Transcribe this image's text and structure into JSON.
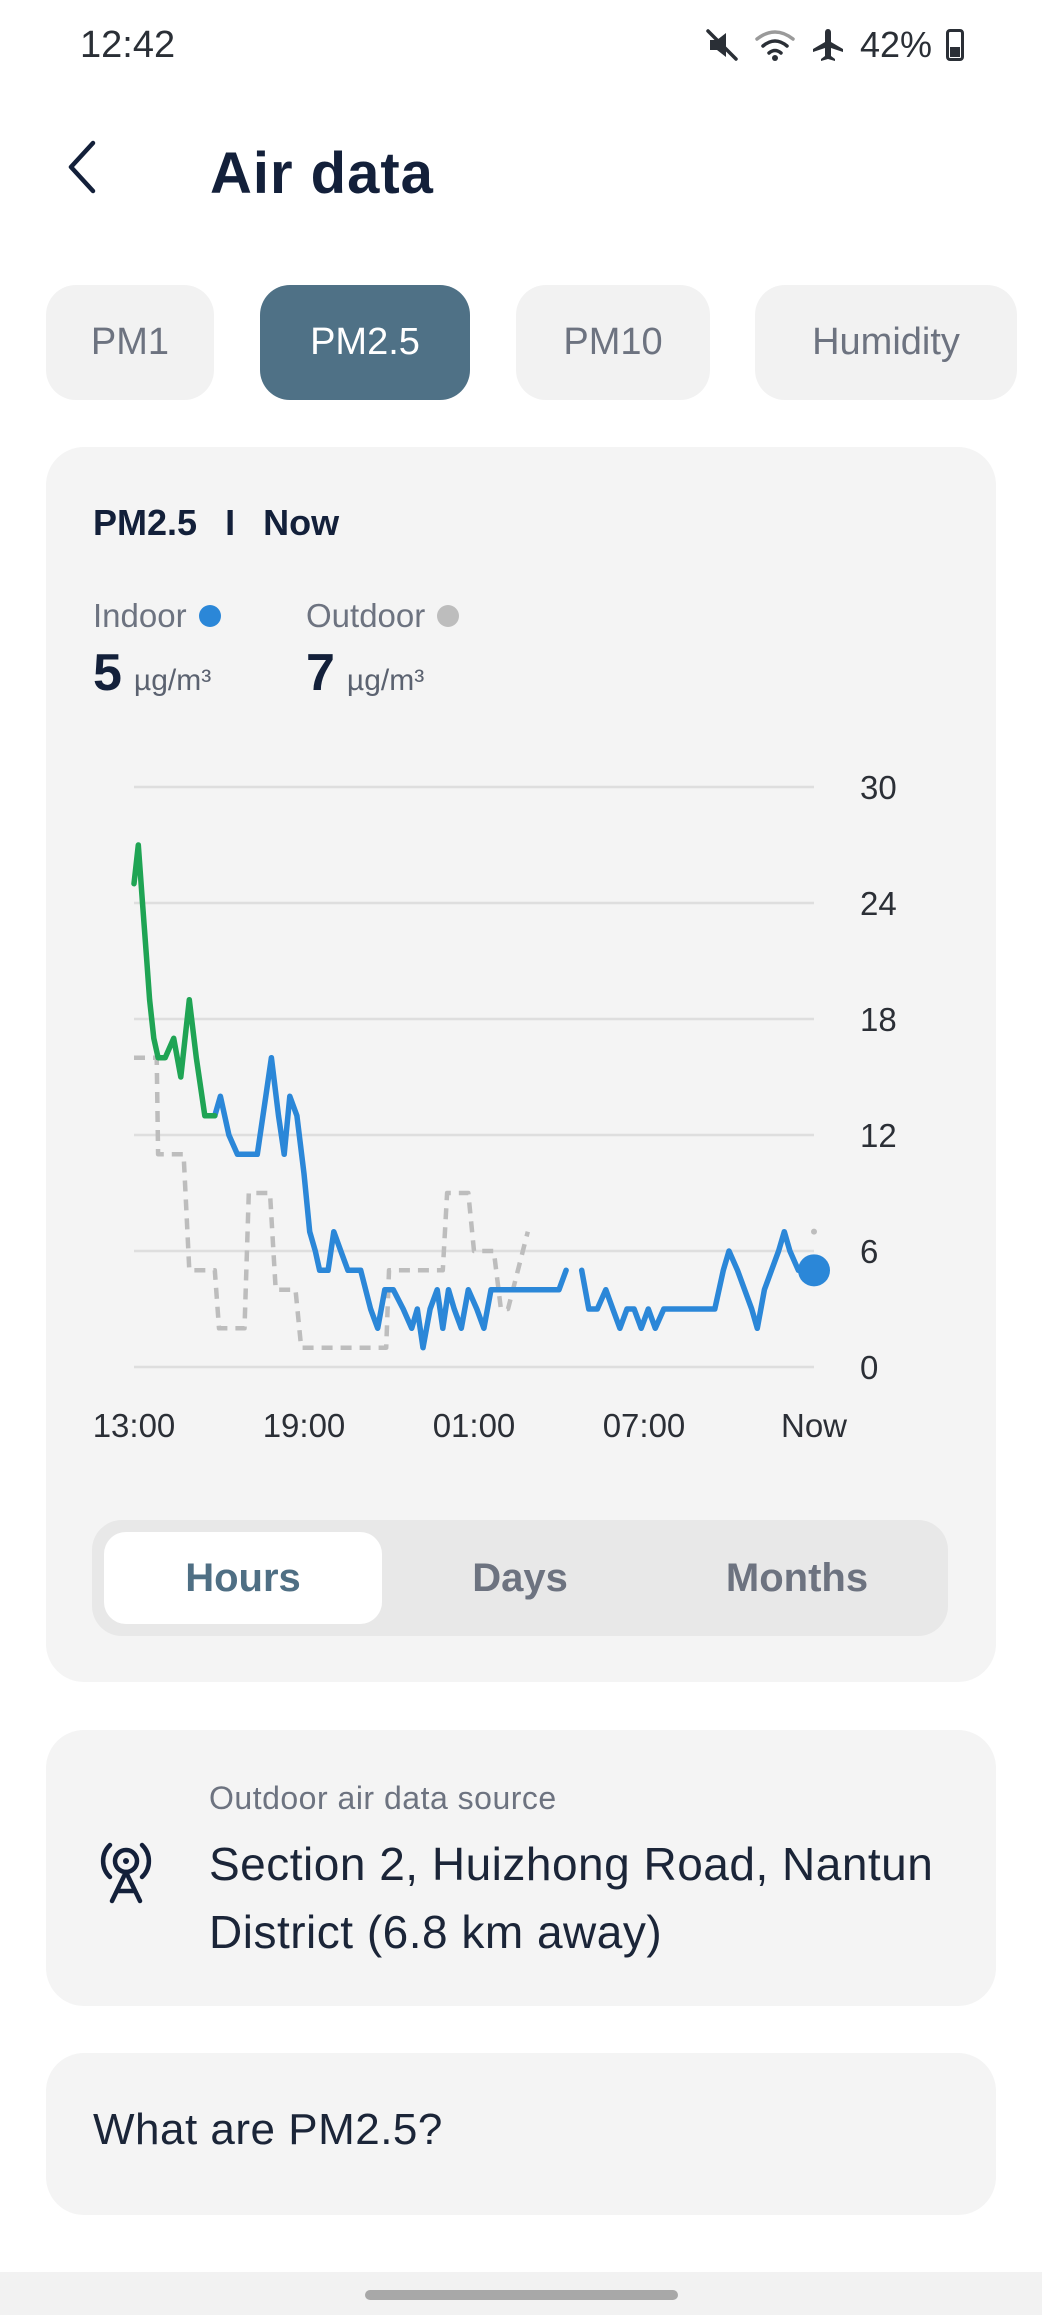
{
  "status_bar": {
    "time": "12:42",
    "battery": "42%",
    "icons": [
      "mute-icon",
      "wifi-icon",
      "airplane-icon",
      "battery-icon"
    ]
  },
  "header": {
    "title": "Air data",
    "back_icon": "chevron-left-icon"
  },
  "tabs": [
    {
      "label": "PM1",
      "active": false
    },
    {
      "label": "PM2.5",
      "active": true
    },
    {
      "label": "PM10",
      "active": false
    },
    {
      "label": "Humidity",
      "active": false
    }
  ],
  "chart_card": {
    "heading_metric": "PM2.5",
    "heading_separator": "I",
    "heading_period": "Now",
    "indoor": {
      "label": "Indoor",
      "value": "5",
      "unit": "µg/m³",
      "color": "#2b87d8"
    },
    "outdoor": {
      "label": "Outdoor",
      "value": "7",
      "unit": "µg/m³",
      "color": "#bdbdbd"
    }
  },
  "chart_data": {
    "type": "line",
    "title": "",
    "xlabel": "",
    "ylabel": "",
    "x_tick_labels": [
      "13:00",
      "19:00",
      "01:00",
      "07:00",
      "Now"
    ],
    "x_ticks": [
      0,
      6,
      12,
      18,
      24
    ],
    "ylim": [
      0,
      30
    ],
    "y_ticks": [
      0,
      6,
      12,
      18,
      24,
      30
    ],
    "y_axis_position": "right",
    "grid": true,
    "colors": {
      "indoor_high": "#1fa454",
      "indoor": "#2b87d8",
      "outdoor": "#bdbdbd"
    },
    "series": [
      {
        "name": "Indoor",
        "style": "solid",
        "segments": [
          [
            [
              0.0,
              25
            ],
            [
              0.15,
              27
            ],
            [
              0.3,
              24
            ],
            [
              0.45,
              21
            ],
            [
              0.55,
              19
            ],
            [
              0.7,
              17
            ],
            [
              0.85,
              16
            ],
            [
              1.1,
              16
            ],
            [
              1.4,
              17
            ],
            [
              1.65,
              15
            ],
            [
              1.95,
              19
            ],
            [
              2.2,
              16
            ],
            [
              2.5,
              13
            ],
            [
              2.85,
              13
            ],
            [
              3.05,
              14
            ],
            [
              3.35,
              12
            ],
            [
              3.65,
              11
            ],
            [
              4.35,
              11
            ],
            [
              4.65,
              14
            ],
            [
              4.85,
              16
            ],
            [
              5.1,
              13
            ],
            [
              5.3,
              11
            ],
            [
              5.5,
              14
            ],
            [
              5.75,
              13
            ],
            [
              6.0,
              10
            ],
            [
              6.2,
              7
            ],
            [
              6.4,
              6
            ],
            [
              6.55,
              5
            ],
            [
              6.85,
              5
            ],
            [
              7.05,
              7
            ],
            [
              7.3,
              6
            ],
            [
              7.55,
              5
            ],
            [
              8.0,
              5
            ],
            [
              8.35,
              3
            ],
            [
              8.6,
              2
            ],
            [
              8.85,
              4
            ],
            [
              9.15,
              4
            ],
            [
              9.5,
              3
            ],
            [
              9.8,
              2
            ],
            [
              10.0,
              3
            ],
            [
              10.2,
              1
            ],
            [
              10.45,
              3
            ],
            [
              10.7,
              4
            ],
            [
              10.9,
              2
            ],
            [
              11.1,
              4
            ],
            [
              11.3,
              3
            ],
            [
              11.55,
              2
            ],
            [
              11.8,
              4
            ],
            [
              12.1,
              3
            ],
            [
              12.35,
              2
            ],
            [
              12.6,
              4
            ],
            [
              13.0,
              4
            ],
            [
              13.4,
              4
            ],
            [
              14.2,
              4
            ],
            [
              14.6,
              4
            ],
            [
              15.0,
              4
            ],
            [
              15.25,
              5
            ]
          ],
          [
            [
              15.8,
              5
            ],
            [
              16.05,
              3
            ],
            [
              16.35,
              3
            ],
            [
              16.65,
              4
            ],
            [
              16.9,
              3
            ],
            [
              17.15,
              2
            ],
            [
              17.4,
              3
            ],
            [
              17.65,
              3
            ],
            [
              17.9,
              2
            ],
            [
              18.15,
              3
            ],
            [
              18.4,
              2
            ],
            [
              18.7,
              3
            ],
            [
              19.3,
              3
            ],
            [
              20.0,
              3
            ],
            [
              20.5,
              3
            ],
            [
              20.8,
              5
            ],
            [
              21.0,
              6
            ],
            [
              21.3,
              5
            ],
            [
              21.55,
              4
            ],
            [
              21.8,
              3
            ],
            [
              22.0,
              2
            ],
            [
              22.25,
              4
            ],
            [
              22.5,
              5
            ],
            [
              22.75,
              6
            ],
            [
              22.95,
              7
            ],
            [
              23.15,
              6
            ],
            [
              23.45,
              5
            ],
            [
              23.75,
              5
            ],
            [
              24.0,
              5
            ]
          ]
        ],
        "high_segment_end_index": 13,
        "current": [
          24,
          5
        ]
      },
      {
        "name": "Outdoor",
        "style": "dashed",
        "segments": [
          [
            [
              0,
              16
            ],
            [
              0.8,
              16
            ],
            [
              0.85,
              11
            ],
            [
              1.75,
              11
            ],
            [
              1.95,
              5
            ],
            [
              2.85,
              5
            ],
            [
              3.0,
              2
            ],
            [
              3.9,
              2
            ],
            [
              4.05,
              9
            ],
            [
              4.8,
              9
            ],
            [
              5.0,
              4
            ],
            [
              5.7,
              4
            ],
            [
              5.9,
              1
            ],
            [
              8.9,
              1
            ],
            [
              9.0,
              5
            ],
            [
              10.9,
              5
            ],
            [
              11.05,
              9
            ],
            [
              11.8,
              9
            ],
            [
              12.0,
              6
            ],
            [
              12.7,
              6
            ],
            [
              12.95,
              3
            ],
            [
              13.2,
              3
            ],
            [
              13.9,
              7
            ]
          ],
          [
            [
              24.0,
              7
            ]
          ]
        ]
      }
    ]
  },
  "range_selector": {
    "options": [
      {
        "label": "Hours",
        "active": true
      },
      {
        "label": "Days",
        "active": false
      },
      {
        "label": "Months",
        "active": false
      }
    ]
  },
  "source_card": {
    "icon": "antenna-icon",
    "label": "Outdoor air data source",
    "text": "Section 2, Huizhong Road, Nantun District (6.8 km away)"
  },
  "faq": {
    "text": "What are PM2.5?"
  }
}
